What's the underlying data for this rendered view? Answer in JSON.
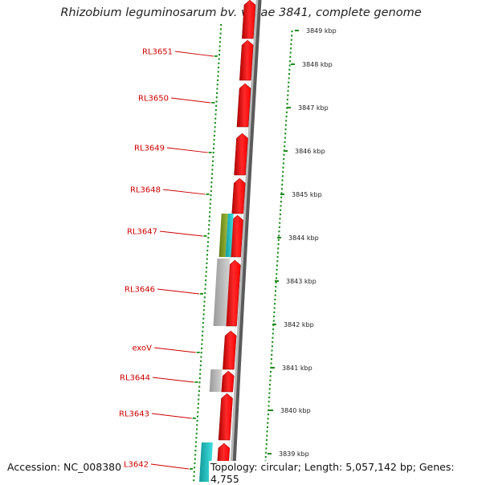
{
  "title": "Rhizobium leguminosarum bv. viciae 3841, complete genome",
  "footer": {
    "accession": "Accession: NC_008380",
    "topology": "Topology: circular; Length: 5,057,142 bp; Genes: 4,755"
  },
  "colors": {
    "forward_cds": "#ff0000",
    "backbone": "#8a8a8a",
    "label_text": "#cc0000",
    "gc_dots": "#1a8a1a",
    "gray_feature": "#bdbdbd",
    "cyan_feature": "#21c4c4",
    "olive_feature": "#7d9a20"
  },
  "gene_labels": [
    "RL3651",
    "RL3650",
    "RL3649",
    "RL3648",
    "RL3647",
    "RL3646",
    "exoV",
    "RL3644",
    "RL3643",
    "RL3642"
  ],
  "kbp_labels": [
    "3849 kbp",
    "3848 kbp",
    "3847 kbp",
    "3846 kbp",
    "3845 kbp",
    "3844 kbp",
    "3843 kbp",
    "3842 kbp",
    "3841 kbp",
    "3840 kbp",
    "3839 kbp"
  ]
}
